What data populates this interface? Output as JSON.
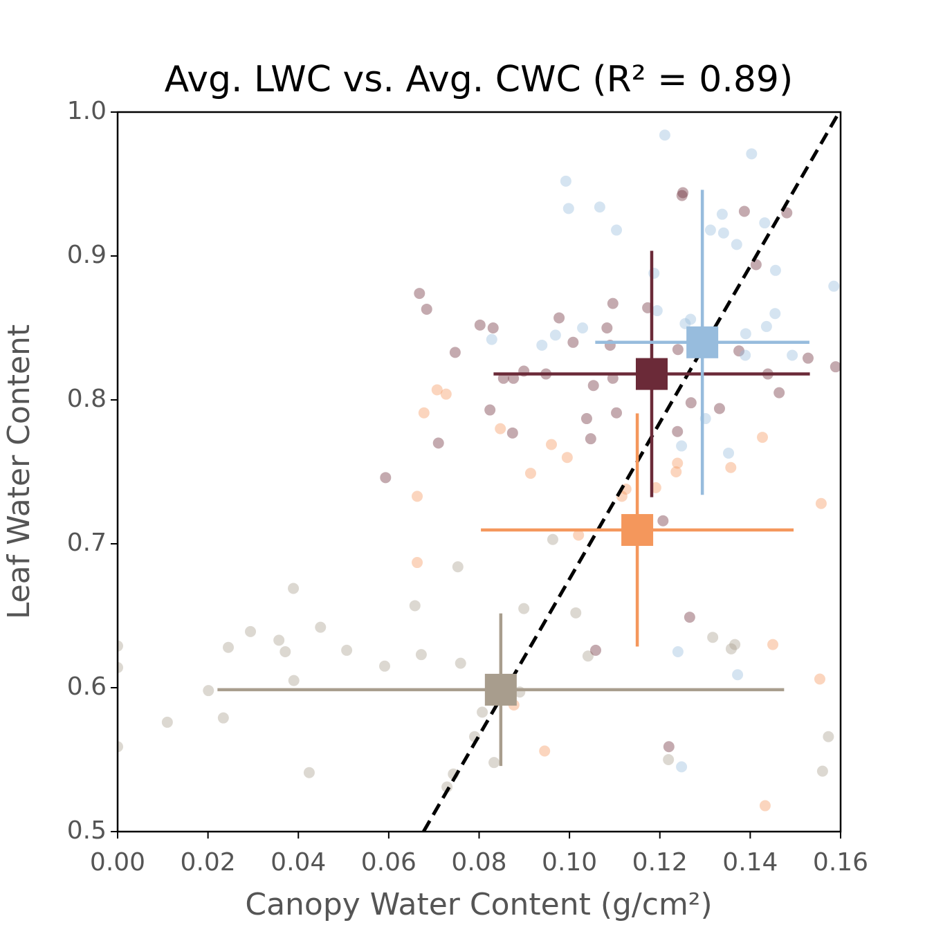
{
  "chart_data": {
    "type": "scatter",
    "title": "Avg. LWC vs. Avg. CWC (R² = 0.89)",
    "xlabel": "Canopy Water Content (g/cm²)",
    "ylabel": "Leaf Water Content",
    "xlim": [
      0,
      0.16
    ],
    "ylim": [
      0.5,
      1.0
    ],
    "xticks": [
      {
        "value": 0,
        "label": "0.00"
      },
      0.02,
      0.04,
      0.06,
      0.08,
      {
        "value": 0.1,
        "label": "0.10"
      },
      0.12,
      0.14,
      0.16
    ],
    "yticks": [
      0.5,
      0.6,
      0.7,
      0.8,
      0.9,
      {
        "value": 1.0,
        "label": "1.0"
      }
    ],
    "grid": false,
    "point_alpha": 0.4,
    "fit_line": {
      "x": [
        0.0677,
        0.1597
      ],
      "y": [
        0.5,
        1.0
      ],
      "color": "#000000",
      "dashed": true
    },
    "series": [
      {
        "color": "#a89d8d",
        "x": [
          0,
          0,
          0,
          0.011,
          0.0201,
          0.0234,
          0.0245,
          0.0294,
          0.0357,
          0.0371,
          0.0389,
          0.039,
          0.0449,
          0.0424,
          0.0507,
          0.0591,
          0.0658,
          0.0672,
          0.0753,
          0.0759,
          0.0899,
          0.0963,
          0.1014,
          0.1041,
          0.0807,
          0.079,
          0.0833,
          0.089,
          0.0729,
          0.0743,
          0.1219,
          0.1317,
          0.1358,
          0.1366,
          0.1573,
          0.156
        ],
        "values": [
          0.629,
          0.614,
          0.559,
          0.576,
          0.598,
          0.579,
          0.628,
          0.639,
          0.633,
          0.625,
          0.669,
          0.605,
          0.642,
          0.541,
          0.626,
          0.615,
          0.657,
          0.623,
          0.684,
          0.617,
          0.655,
          0.703,
          0.652,
          0.622,
          0.583,
          0.566,
          0.548,
          0.597,
          0.531,
          0.54,
          0.55,
          0.635,
          0.627,
          0.63,
          0.566,
          0.542
        ],
        "mean": {
          "x": 0.0848,
          "y": 0.5986,
          "xerr": 0.0627,
          "yerr": 0.053
        }
      },
      {
        "color": "#f4975c",
        "x": [
          0.0707,
          0.0727,
          0.0678,
          0.0847,
          0.096,
          0.0995,
          0.0914,
          0.1239,
          0.1236,
          0.1357,
          0.1427,
          0.0663,
          0.1557,
          0.1191,
          0.1125,
          0.1116,
          0.102,
          0.0663,
          0.145,
          0.1554,
          0.0877,
          0.0945,
          0.1433
        ],
        "values": [
          0.807,
          0.804,
          0.791,
          0.78,
          0.769,
          0.76,
          0.749,
          0.756,
          0.75,
          0.753,
          0.774,
          0.733,
          0.728,
          0.739,
          0.738,
          0.733,
          0.706,
          0.687,
          0.63,
          0.606,
          0.588,
          0.556,
          0.518
        ],
        "mean": {
          "x": 0.115,
          "y": 0.7096,
          "xerr": 0.0346,
          "yerr": 0.081
        }
      },
      {
        "color": "#6b2a38",
        "x": [
          0.1251,
          0.1249,
          0.1387,
          0.1481,
          0.1413,
          0.0668,
          0.0684,
          0.1096,
          0.1173,
          0.0802,
          0.0831,
          0.0977,
          0.1083,
          0.0747,
          0.1008,
          0.109,
          0.124,
          0.1375,
          0.1528,
          0.1589,
          0.0899,
          0.0854,
          0.0876,
          0.0948,
          0.1053,
          0.1096,
          0.1439,
          0.1464,
          0.0824,
          0.1104,
          0.1038,
          0.0874,
          0.1239,
          0.1047,
          0.1269,
          0.1332,
          0.071,
          0.0593,
          0.1207,
          0.1266,
          0.1058,
          0.122
        ],
        "values": [
          0.944,
          0.942,
          0.931,
          0.93,
          0.894,
          0.874,
          0.863,
          0.867,
          0.864,
          0.852,
          0.85,
          0.857,
          0.85,
          0.833,
          0.84,
          0.838,
          0.835,
          0.834,
          0.829,
          0.823,
          0.82,
          0.815,
          0.815,
          0.818,
          0.81,
          0.815,
          0.818,
          0.805,
          0.793,
          0.791,
          0.787,
          0.777,
          0.778,
          0.773,
          0.798,
          0.794,
          0.77,
          0.746,
          0.716,
          0.649,
          0.626,
          0.559
        ],
        "mean": {
          "x": 0.1182,
          "y": 0.818,
          "xerr": 0.035,
          "yerr": 0.0856
        }
      },
      {
        "color": "#97bcdd",
        "x": [
          0.1211,
          0.1403,
          0.0992,
          0.0998,
          0.1067,
          0.1104,
          0.1338,
          0.1312,
          0.1341,
          0.1432,
          0.137,
          0.1187,
          0.1456,
          0.1585,
          0.1194,
          0.1029,
          0.0939,
          0.0969,
          0.0828,
          0.1256,
          0.1268,
          0.1436,
          0.139,
          0.1389,
          0.1493,
          0.1455,
          0.1301,
          0.1248,
          0.1352,
          0.124,
          0.1372,
          0.1248
        ],
        "values": [
          0.984,
          0.971,
          0.952,
          0.933,
          0.934,
          0.918,
          0.929,
          0.918,
          0.916,
          0.923,
          0.908,
          0.888,
          0.89,
          0.879,
          0.862,
          0.85,
          0.838,
          0.845,
          0.842,
          0.853,
          0.856,
          0.851,
          0.846,
          0.831,
          0.831,
          0.86,
          0.787,
          0.768,
          0.763,
          0.625,
          0.609,
          0.545
        ],
        "mean": {
          "x": 0.1294,
          "y": 0.84,
          "xerr": 0.0237,
          "yerr": 0.106
        }
      }
    ]
  }
}
